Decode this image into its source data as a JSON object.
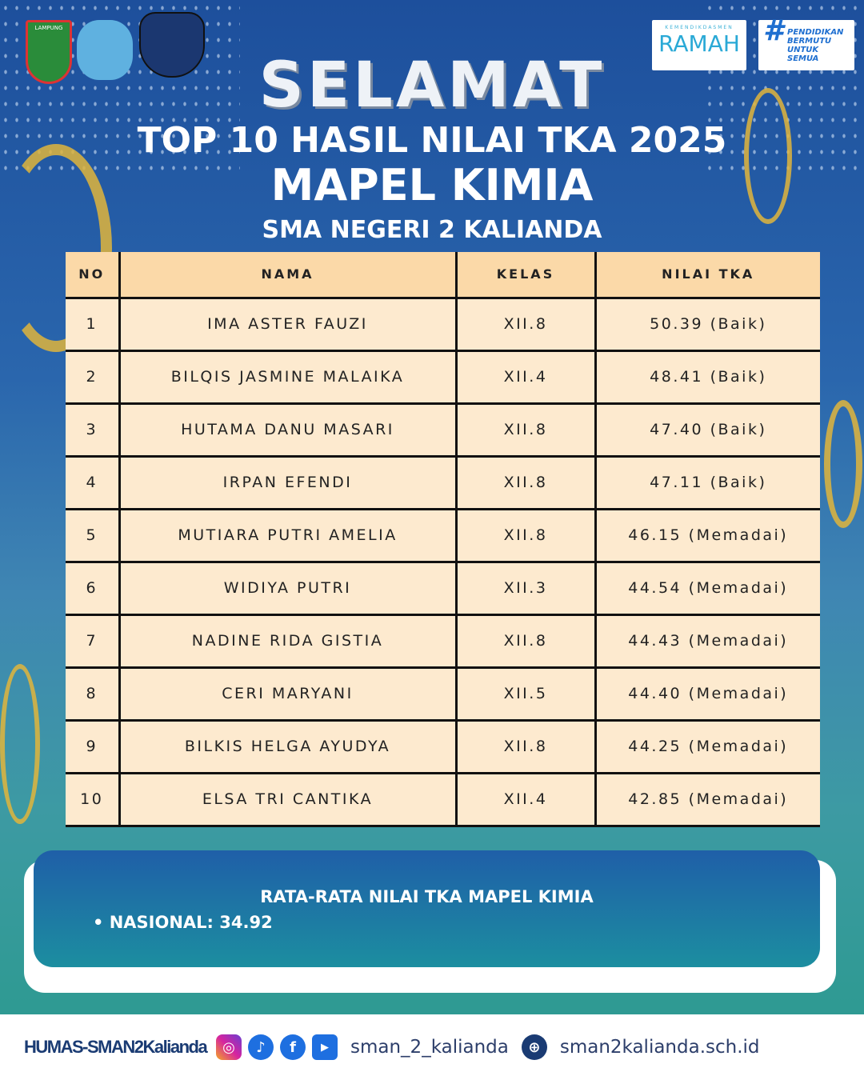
{
  "logos": {
    "left": [
      "LAMPUNG",
      "Tut Wuri Handayani",
      "SMAN 2 Kalianda"
    ],
    "ramah_small": "KEMENDIKDASMEN",
    "ramah": "RAMAH",
    "tagline": [
      "PENDIDIKAN",
      "BERMUTU",
      "UNTUK SEMUA"
    ]
  },
  "header": {
    "greeting": "SELAMAT",
    "title": "TOP 10 HASIL NILAI TKA 2025",
    "subject": "MAPEL KIMIA",
    "school": "SMA NEGERI 2 KALIANDA"
  },
  "table": {
    "headers": [
      "NO",
      "NAMA",
      "KELAS",
      "NILAI TKA"
    ],
    "rows": [
      [
        "1",
        "IMA ASTER FAUZI",
        "XII.8",
        "50.39 (Baik)"
      ],
      [
        "2",
        "BILQIS JASMINE MALAIKA",
        "XII.4",
        "48.41 (Baik)"
      ],
      [
        "3",
        "HUTAMA DANU MASARI",
        "XII.8",
        "47.40  (Baik)"
      ],
      [
        "4",
        "IRPAN EFENDI",
        "XII.8",
        "47.11 (Baik)"
      ],
      [
        "5",
        "MUTIARA PUTRI AMELIA",
        "XII.8",
        "46.15 (Memadai)"
      ],
      [
        "6",
        "WIDIYA PUTRI",
        "XII.3",
        "44.54 (Memadai)"
      ],
      [
        "7",
        "NADINE RIDA GISTIA",
        "XII.8",
        "44.43  (Memadai)"
      ],
      [
        "8",
        "CERI MARYANI",
        "XII.5",
        "44.40  (Memadai)"
      ],
      [
        "9",
        "BILKIS HELGA AYUDYA",
        "XII.8",
        "44.25 (Memadai)"
      ],
      [
        "10",
        "ELSA TRI CANTIKA",
        "XII.4",
        "42.85 (Memadai)"
      ]
    ]
  },
  "summary": {
    "title": "RATA-RATA NILAI TKA  MAPEL KIMIA",
    "item": "• NASIONAL:  34.92"
  },
  "footer": {
    "humas": "HUMAS-SMAN2Kalianda",
    "social": "sman_2_kalianda",
    "website": "sman2kalianda.sch.id"
  }
}
